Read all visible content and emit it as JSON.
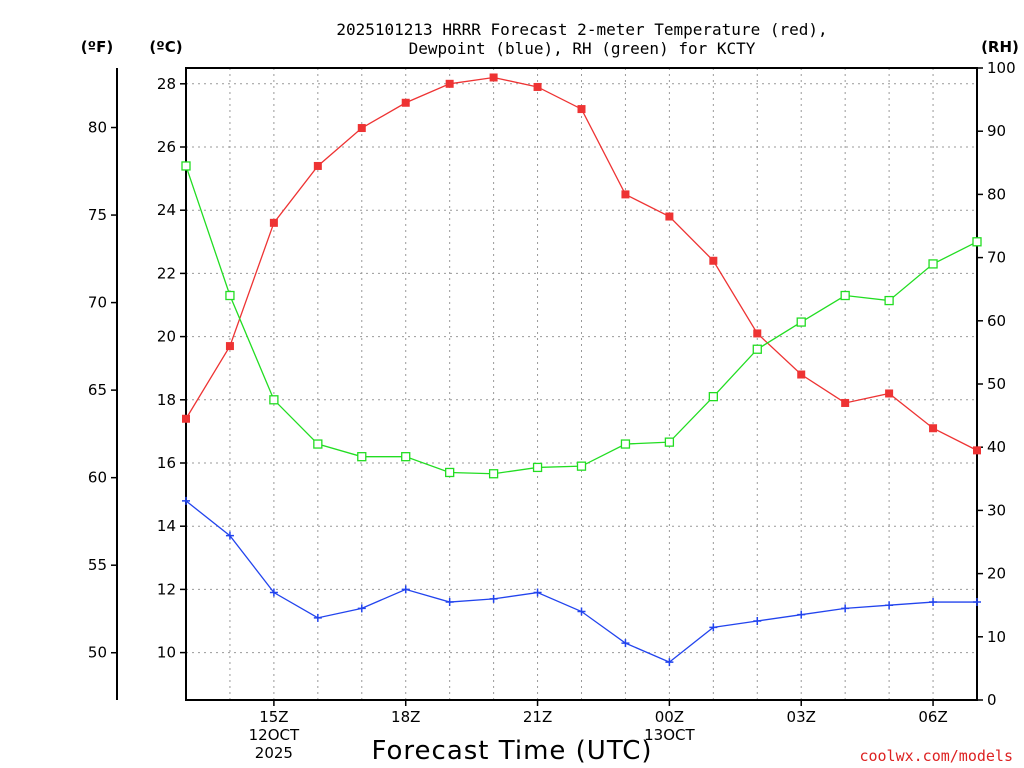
{
  "chart_data": {
    "type": "line",
    "title_line1": "2025101213 HRRR Forecast 2-meter Temperature (red),",
    "title_line2": "Dewpoint (blue), RH (green) for KCTY",
    "xlabel": "Forecast Time (UTC)",
    "credit": "coolwx.com/models",
    "colors": {
      "temperature": "#ee3333",
      "dewpoint": "#2244ee",
      "rh": "#22dd22",
      "credit": "#dd2222"
    },
    "left_outer_axis": {
      "unit": "(ºF)",
      "ylim": [
        47.3,
        83.4
      ],
      "ticks": [
        "50",
        "55",
        "60",
        "65",
        "70",
        "75",
        "80"
      ]
    },
    "left_axis": {
      "unit": "(ºC)",
      "ylim": [
        8.5,
        28.5
      ],
      "ticks": [
        "10",
        "12",
        "14",
        "16",
        "18",
        "20",
        "22",
        "24",
        "26",
        "28"
      ]
    },
    "right_axis": {
      "unit": "(RH)",
      "ylim": [
        0,
        100
      ],
      "ticks": [
        "0",
        "10",
        "20",
        "30",
        "40",
        "50",
        "60",
        "70",
        "80",
        "90",
        "100"
      ]
    },
    "x_hours": [
      13,
      14,
      15,
      16,
      17,
      18,
      19,
      20,
      21,
      22,
      23,
      24,
      25,
      26,
      27,
      28,
      29,
      30,
      31
    ],
    "x_ticks": [
      {
        "hour": 15,
        "lines": [
          "15Z",
          "12OCT",
          "2025"
        ]
      },
      {
        "hour": 18,
        "lines": [
          "18Z"
        ]
      },
      {
        "hour": 21,
        "lines": [
          "21Z"
        ]
      },
      {
        "hour": 24,
        "lines": [
          "00Z",
          "13OCT"
        ]
      },
      {
        "hour": 27,
        "lines": [
          "03Z"
        ]
      },
      {
        "hour": 30,
        "lines": [
          "06Z"
        ]
      }
    ],
    "series": [
      {
        "name": "Temperature",
        "unit": "C",
        "marker": "filled-square",
        "values": [
          17.4,
          19.7,
          23.6,
          25.4,
          26.6,
          27.4,
          28.0,
          28.2,
          27.9,
          27.2,
          24.5,
          23.8,
          22.4,
          20.1,
          18.8,
          17.9,
          18.2,
          17.1,
          16.4
        ]
      },
      {
        "name": "Dewpoint",
        "unit": "C",
        "marker": "plus",
        "values": [
          14.8,
          13.7,
          11.9,
          11.1,
          11.4,
          12.0,
          11.6,
          11.7,
          11.9,
          11.3,
          10.3,
          9.7,
          10.8,
          11.0,
          11.2,
          11.4,
          11.5,
          11.6,
          11.6
        ]
      },
      {
        "name": "RH",
        "unit": "%",
        "marker": "open-square",
        "values": [
          84.5,
          64.0,
          47.5,
          40.5,
          38.5,
          38.5,
          36.0,
          35.8,
          36.8,
          37.0,
          40.5,
          40.8,
          48.0,
          55.5,
          59.8,
          64.0,
          63.2,
          69.0,
          72.5
        ]
      }
    ],
    "grid": true
  }
}
